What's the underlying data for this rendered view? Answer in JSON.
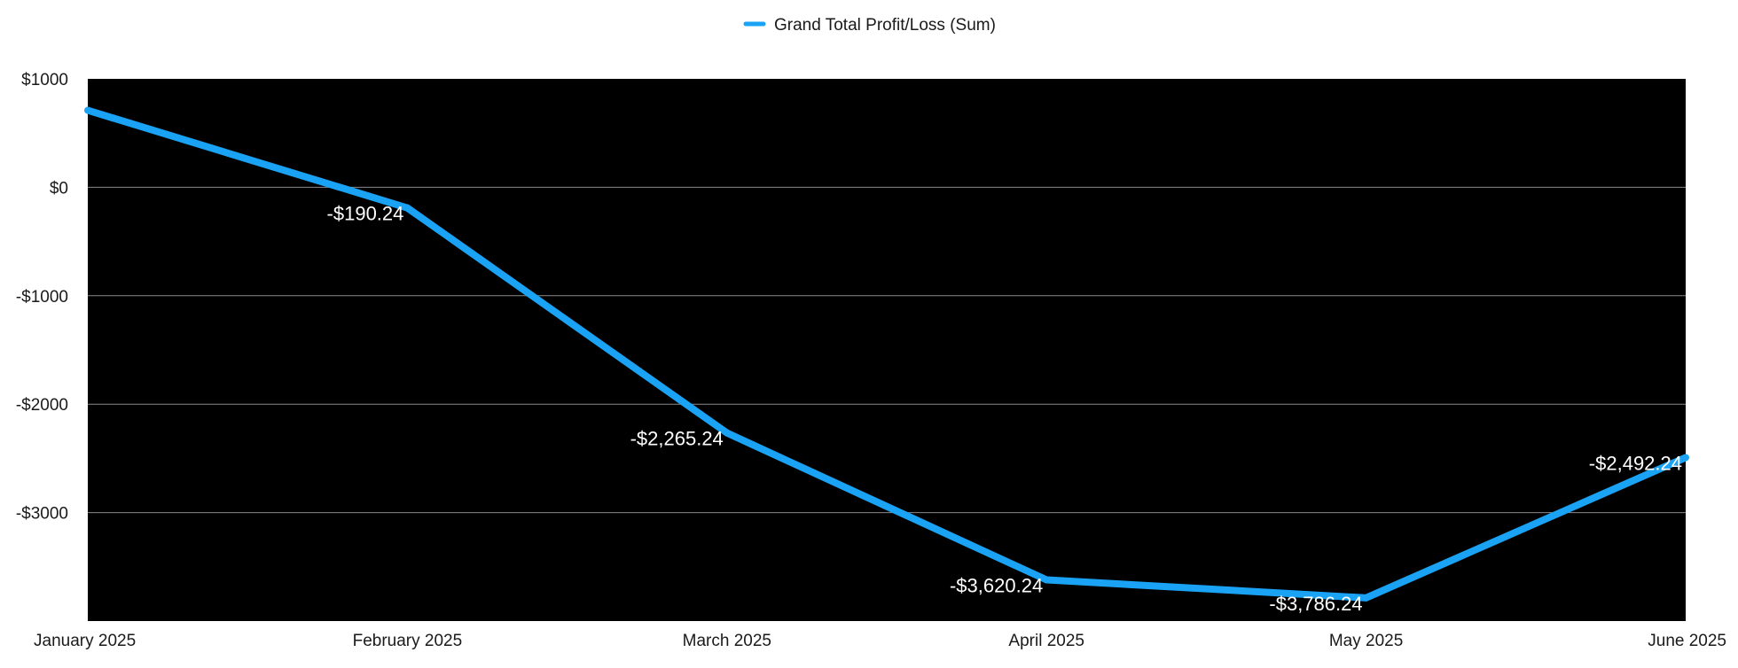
{
  "chart_data": {
    "type": "line",
    "title": "",
    "xlabel": "",
    "ylabel": "",
    "categories": [
      "January 2025",
      "February 2025",
      "March 2025",
      "April 2025",
      "May 2025",
      "June 2025"
    ],
    "series": [
      {
        "name": "Grand Total Profit/Loss (Sum)",
        "values": [
          709.76,
          -190.24,
          -2265.24,
          -3620.24,
          -3786.24,
          -2492.24
        ],
        "data_labels": [
          "",
          "-$190.24",
          "-$2,265.24",
          "-$3,620.24",
          "-$3,786.24",
          "-$2,492.24"
        ]
      }
    ],
    "ylim": [
      -4000,
      1000
    ],
    "yticks": [
      1000,
      0,
      -1000,
      -2000,
      -3000
    ],
    "ytick_labels": [
      "$1000",
      "$0",
      "-$1000",
      "-$2000",
      "-$3000"
    ],
    "grid": true,
    "legend_position": "top-center",
    "colors": {
      "line": "#1aa3f5",
      "plot_background": "#000000",
      "gridline": "#8a8a8a",
      "data_label": "#ffffff",
      "legend_text": "#1a1a1a"
    }
  }
}
